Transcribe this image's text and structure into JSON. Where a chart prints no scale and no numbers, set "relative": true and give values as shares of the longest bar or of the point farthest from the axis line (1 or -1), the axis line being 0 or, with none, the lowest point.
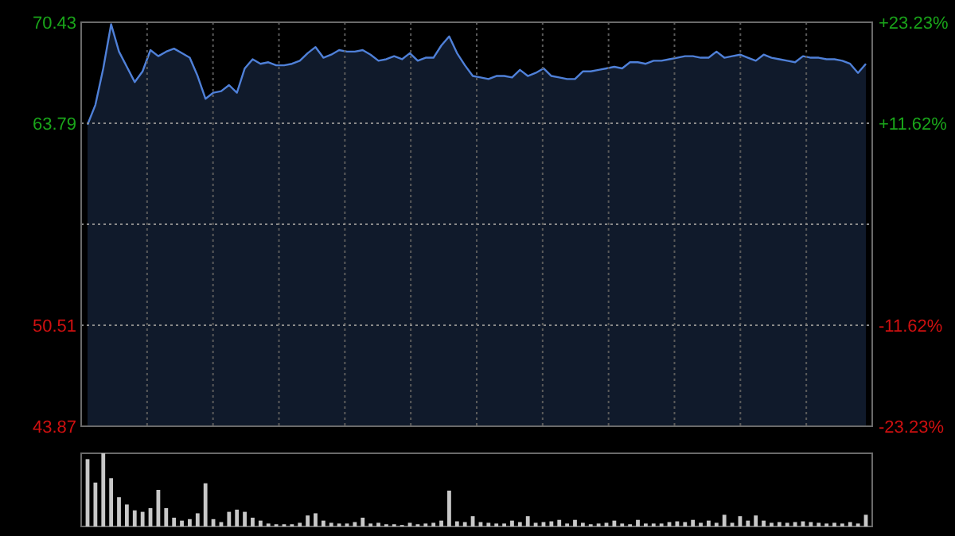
{
  "chart_data": [
    {
      "type": "area",
      "color": "#4f80d8",
      "categories": [
        null,
        null,
        null,
        null,
        null,
        null,
        null,
        null,
        null,
        null,
        null,
        null,
        null,
        null,
        null,
        null,
        null,
        null,
        null,
        null,
        null,
        null,
        null,
        null,
        null,
        null,
        null,
        null,
        null,
        null,
        null,
        null,
        null,
        null,
        null,
        null,
        null,
        null,
        null,
        null,
        null,
        null,
        null,
        null,
        null,
        null,
        null,
        null,
        null,
        null,
        null,
        null,
        null,
        null,
        null,
        null,
        null,
        null,
        null,
        null,
        null,
        null,
        null,
        null,
        null,
        null,
        null,
        null,
        null,
        null,
        null,
        null,
        null,
        null,
        null,
        null,
        null,
        null,
        null,
        null,
        null,
        null,
        null,
        null,
        null,
        null,
        null,
        null,
        null,
        null,
        null,
        null,
        null,
        null,
        null,
        null,
        null,
        null,
        null,
        null
      ],
      "values": [
        63.7,
        65.0,
        67.4,
        70.3,
        68.5,
        67.5,
        66.5,
        67.2,
        68.6,
        68.2,
        68.5,
        68.7,
        68.4,
        68.1,
        66.9,
        65.4,
        65.8,
        65.9,
        66.3,
        65.8,
        67.4,
        68.0,
        67.7,
        67.8,
        67.6,
        67.6,
        67.7,
        67.9,
        68.4,
        68.8,
        68.1,
        68.3,
        68.6,
        68.5,
        68.5,
        68.6,
        68.3,
        67.9,
        68.0,
        68.2,
        68.0,
        68.4,
        67.9,
        68.1,
        68.1,
        68.9,
        69.5,
        68.4,
        67.6,
        66.9,
        66.8,
        66.7,
        66.9,
        66.9,
        66.8,
        67.3,
        66.9,
        67.1,
        67.4,
        66.9,
        66.8,
        66.7,
        66.7,
        67.2,
        67.2,
        67.3,
        67.4,
        67.5,
        67.4,
        67.8,
        67.8,
        67.7,
        67.9,
        67.9,
        68.0,
        68.1,
        68.2,
        68.2,
        68.1,
        68.1,
        68.5,
        68.1,
        68.2,
        68.3,
        68.1,
        67.9,
        68.3,
        68.1,
        68.0,
        67.9,
        67.8,
        68.2,
        68.1,
        68.1,
        68.0,
        68.0,
        67.9,
        67.7,
        67.1,
        67.7
      ],
      "ylim": [
        43.87,
        70.43
      ],
      "yticks": [
        43.87,
        50.51,
        {
          "value": 57.15,
          "label": null
        },
        63.79,
        70.43
      ],
      "y2lim": [
        -23.23,
        23.23
      ],
      "y2ticks": [
        {
          "value": -23.23,
          "label": "-23.23%"
        },
        {
          "value": -11.62,
          "label": "-11.62%"
        },
        {
          "value": 11.62,
          "label": "+11.62%"
        },
        {
          "value": 23.23,
          "label": "+23.23%"
        }
      ],
      "grid": true
    },
    {
      "type": "bar",
      "relative": true,
      "color": "#c8c8c8",
      "categories": [
        null,
        null,
        null,
        null,
        null,
        null,
        null,
        null,
        null,
        null,
        null,
        null,
        null,
        null,
        null,
        null,
        null,
        null,
        null,
        null,
        null,
        null,
        null,
        null,
        null,
        null,
        null,
        null,
        null,
        null,
        null,
        null,
        null,
        null,
        null,
        null,
        null,
        null,
        null,
        null,
        null,
        null,
        null,
        null,
        null,
        null,
        null,
        null,
        null,
        null,
        null,
        null,
        null,
        null,
        null,
        null,
        null,
        null,
        null,
        null,
        null,
        null,
        null,
        null,
        null,
        null,
        null,
        null,
        null,
        null,
        null,
        null,
        null,
        null,
        null,
        null,
        null,
        null,
        null,
        null,
        null,
        null,
        null,
        null,
        null,
        null,
        null,
        null,
        null,
        null,
        null,
        null,
        null,
        null,
        null,
        null,
        null,
        null,
        null,
        null
      ],
      "values": [
        0.92,
        0.6,
        1,
        0.66,
        0.4,
        0.3,
        0.22,
        0.2,
        0.25,
        0.5,
        0.25,
        0.12,
        0.08,
        0.1,
        0.18,
        0.59,
        0.1,
        0.06,
        0.2,
        0.23,
        0.2,
        0.12,
        0.08,
        0.04,
        0.03,
        0.03,
        0.03,
        0.05,
        0.15,
        0.18,
        0.08,
        0.05,
        0.04,
        0.04,
        0.06,
        0.12,
        0.04,
        0.05,
        0.03,
        0.03,
        0.02,
        0.05,
        0.03,
        0.04,
        0.05,
        0.08,
        0.49,
        0.07,
        0.06,
        0.14,
        0.06,
        0.05,
        0.04,
        0.04,
        0.08,
        0.06,
        0.14,
        0.05,
        0.06,
        0.07,
        0.09,
        0.04,
        0.09,
        0.05,
        0.03,
        0.04,
        0.05,
        0.08,
        0.04,
        0.03,
        0.09,
        0.04,
        0.04,
        0.04,
        0.06,
        0.07,
        0.06,
        0.09,
        0.05,
        0.08,
        0.05,
        0.16,
        0.05,
        0.14,
        0.08,
        0.15,
        0.08,
        0.05,
        0.06,
        0.05,
        0.06,
        0.07,
        0.06,
        0.05,
        0.04,
        0.05,
        0.04,
        0.06,
        0.04,
        0.16
      ]
    }
  ]
}
